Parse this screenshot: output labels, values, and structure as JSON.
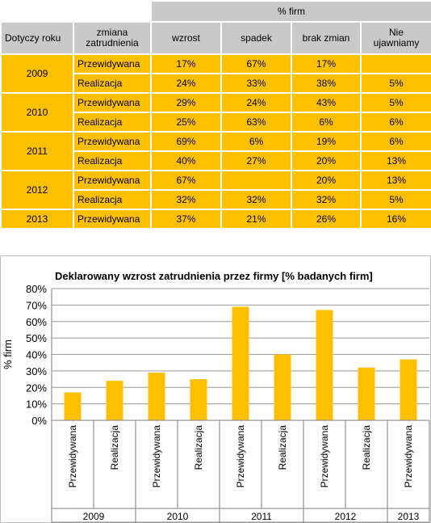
{
  "table": {
    "group_header": "% firm",
    "columns": [
      "Dotyczy roku",
      "zmiana\nzatrudnienia",
      "wzrost",
      "spadek",
      "brak zmian",
      "Nie\nujawniamy"
    ],
    "rows": [
      {
        "year": "2009",
        "type": "Przewidywana",
        "wzrost": "17%",
        "spadek": "67%",
        "brak": "17%",
        "nie": ""
      },
      {
        "year": "2009",
        "type": "Realizacja",
        "wzrost": "24%",
        "spadek": "33%",
        "brak": "38%",
        "nie": "5%"
      },
      {
        "year": "2010",
        "type": "Przewidywana",
        "wzrost": "29%",
        "spadek": "24%",
        "brak": "43%",
        "nie": "5%"
      },
      {
        "year": "2010",
        "type": "Realizacja",
        "wzrost": "25%",
        "spadek": "63%",
        "brak": "6%",
        "nie": "6%"
      },
      {
        "year": "2011",
        "type": "Przewidywana",
        "wzrost": "69%",
        "spadek": "6%",
        "brak": "19%",
        "nie": "6%"
      },
      {
        "year": "2011",
        "type": "Realizacja",
        "wzrost": "40%",
        "spadek": "27%",
        "brak": "20%",
        "nie": "13%"
      },
      {
        "year": "2012",
        "type": "Przewidywana",
        "wzrost": "67%",
        "spadek": "",
        "brak": "20%",
        "nie": "13%"
      },
      {
        "year": "2012",
        "type": "Realizacja",
        "wzrost": "32%",
        "spadek": "32%",
        "brak": "32%",
        "nie": "5%"
      },
      {
        "year": "2013",
        "type": "Przewidywana",
        "wzrost": "37%",
        "spadek": "21%",
        "brak": "26%",
        "nie": "16%"
      }
    ]
  },
  "colors": {
    "bar": "#ffc000",
    "header": "#c9c9c9",
    "grid": "#9a9a9a"
  },
  "chart_data": {
    "type": "bar",
    "title": "Deklarowany  wzrost  zatrudnienia  przez  firmy  [% badanych  firm]",
    "ylabel": "% firm",
    "xlabel": "",
    "ylim": [
      0,
      80
    ],
    "yticks": [
      "0%",
      "10%",
      "20%",
      "30%",
      "40%",
      "50%",
      "60%",
      "70%",
      "80%"
    ],
    "grid": true,
    "categories": [
      "Przewidywana",
      "Realizacja",
      "Przewidywana",
      "Realizacja",
      "Przewidywana",
      "Realizacja",
      "Przewidywana",
      "Realizacja",
      "Przewidywana"
    ],
    "groups": [
      {
        "label": "2009",
        "count": 2
      },
      {
        "label": "2010",
        "count": 2
      },
      {
        "label": "2011",
        "count": 2
      },
      {
        "label": "2012",
        "count": 2
      },
      {
        "label": "2013",
        "count": 1
      }
    ],
    "values": [
      17,
      24,
      29,
      25,
      69,
      40,
      67,
      32,
      37
    ]
  }
}
